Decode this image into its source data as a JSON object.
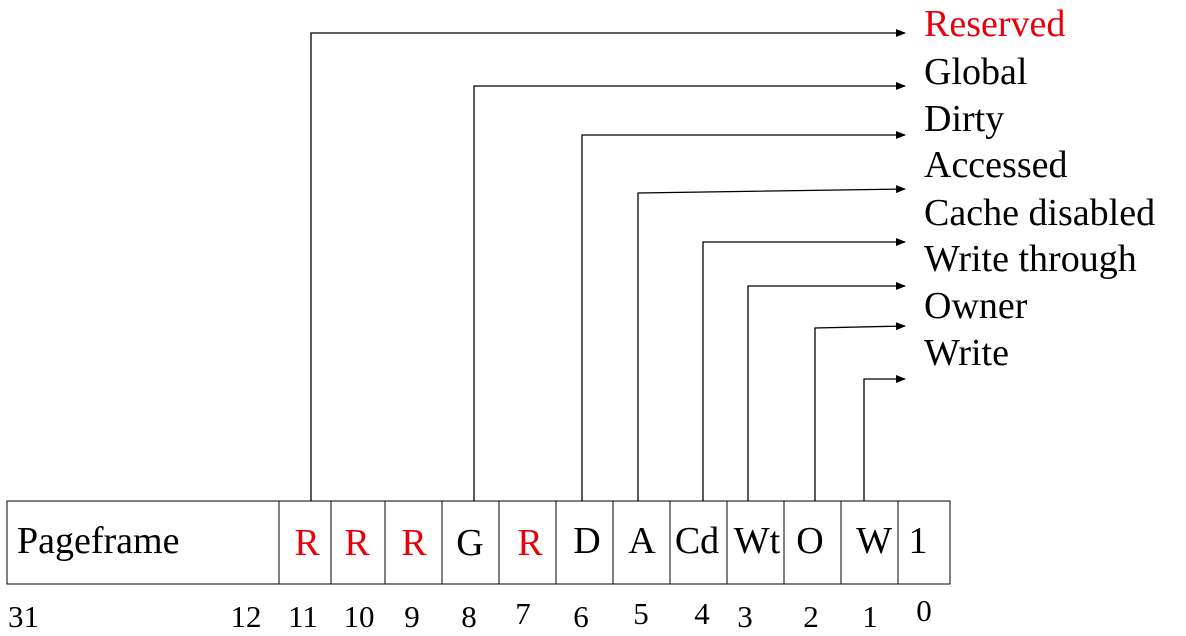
{
  "register": {
    "fields": [
      {
        "id": "pageframe",
        "label": "Pageframe",
        "reserved": false
      },
      {
        "id": "bit11",
        "label": "R",
        "reserved": true
      },
      {
        "id": "bit10",
        "label": "R",
        "reserved": true
      },
      {
        "id": "bit9",
        "label": "R",
        "reserved": true
      },
      {
        "id": "bit8",
        "label": "G",
        "reserved": false
      },
      {
        "id": "bit7",
        "label": "R",
        "reserved": true
      },
      {
        "id": "bit6",
        "label": "D",
        "reserved": false
      },
      {
        "id": "bit5",
        "label": "A",
        "reserved": false
      },
      {
        "id": "bit4",
        "label": "Cd",
        "reserved": false
      },
      {
        "id": "bit3",
        "label": "Wt",
        "reserved": false
      },
      {
        "id": "bit2",
        "label": "O",
        "reserved": false
      },
      {
        "id": "bit1",
        "label": "W",
        "reserved": false
      },
      {
        "id": "bit0",
        "label": "1",
        "reserved": false
      }
    ],
    "bit_numbers": [
      "31",
      "12",
      "11",
      "10",
      "9",
      "8",
      "7",
      "6",
      "5",
      "4",
      "3",
      "2",
      "1",
      "0"
    ]
  },
  "legend": [
    {
      "id": "reserved",
      "label": "Reserved",
      "reserved": true
    },
    {
      "id": "global",
      "label": "Global",
      "reserved": false
    },
    {
      "id": "dirty",
      "label": "Dirty",
      "reserved": false
    },
    {
      "id": "accessed",
      "label": "Accessed",
      "reserved": false
    },
    {
      "id": "cache-disabled",
      "label": "Cache disabled",
      "reserved": false
    },
    {
      "id": "write-through",
      "label": "Write through",
      "reserved": false
    },
    {
      "id": "owner",
      "label": "Owner",
      "reserved": false
    },
    {
      "id": "write",
      "label": "Write",
      "reserved": false
    }
  ],
  "colors": {
    "reserved": "#e8000b",
    "normal": "#000000",
    "line": "#000000"
  }
}
